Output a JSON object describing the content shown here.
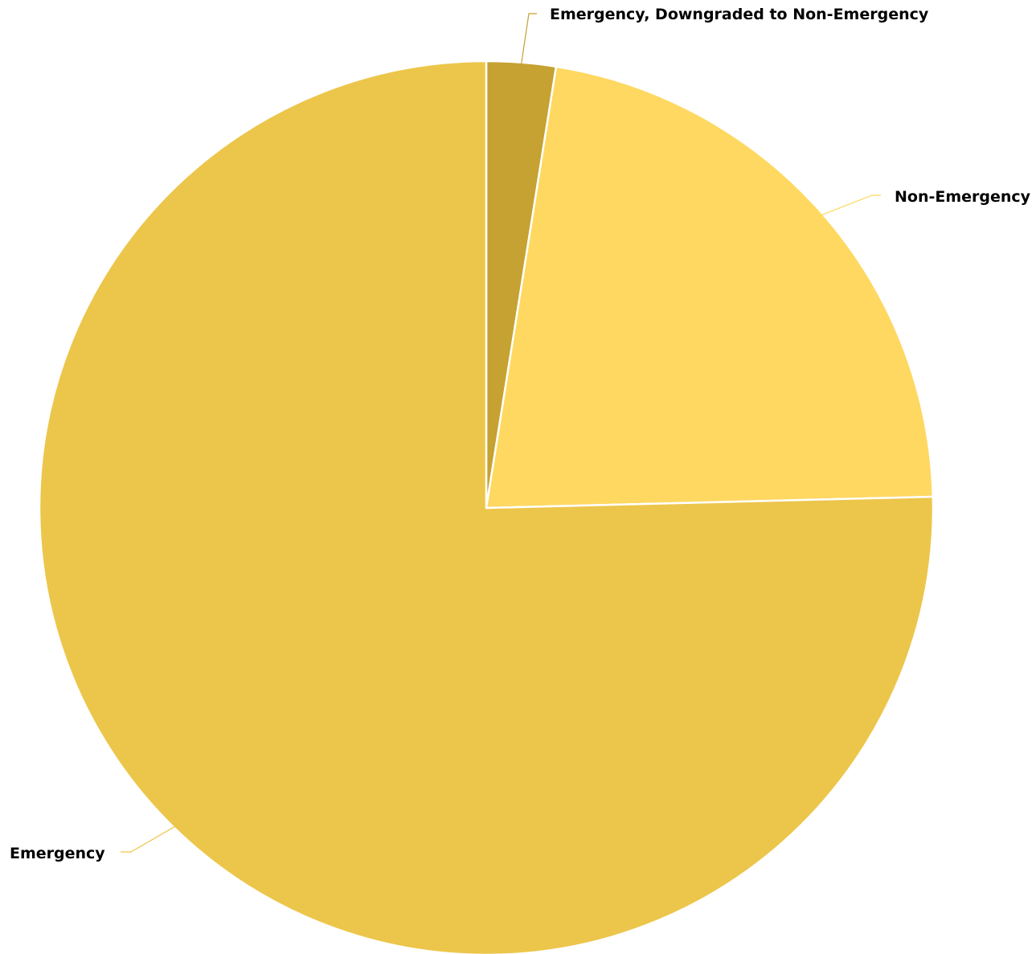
{
  "chart_data": {
    "type": "pie",
    "start_angle_deg": 0,
    "direction": "clockwise",
    "slices": [
      {
        "label": "Emergency, Downgraded to Non-Emergency",
        "value": 2.5,
        "color": "#C5A231"
      },
      {
        "label": "Non-Emergency",
        "value": 22.1,
        "color": "#FED861"
      },
      {
        "label": "Emergency",
        "value": 75.4,
        "color": "#ECC64B"
      }
    ],
    "legend": "none",
    "data_labels": "category names with leader lines"
  }
}
